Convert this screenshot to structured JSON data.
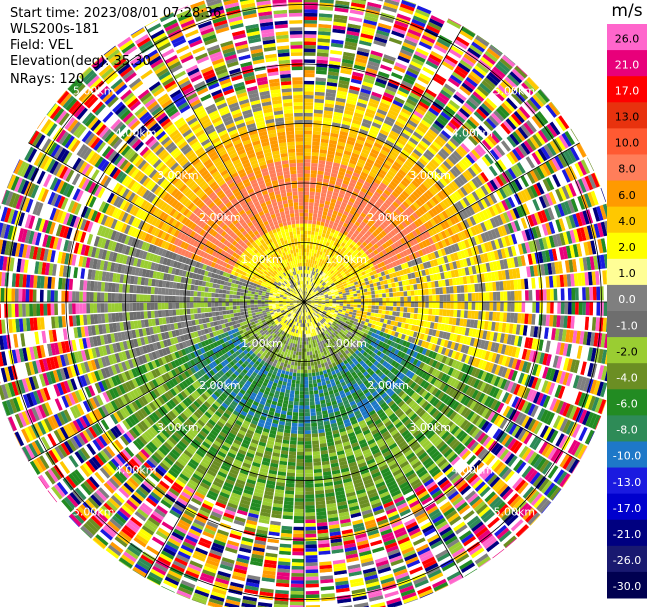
{
  "header": {
    "start_time": "Start time: 2023/08/01 07:28:36",
    "instrument": "WLS200s-181",
    "field": "Field: VEL",
    "elevation": "Elevation(deg): 35.30",
    "nrays": "NRays: 120"
  },
  "chart_data": {
    "type": "heatmap",
    "subtype": "polar PPI",
    "field": "VEL",
    "nrays": 120,
    "range_rings_km": [
      1,
      2,
      3,
      4,
      5
    ],
    "ring_labels": [
      "1.00km",
      "2.00km",
      "3.00km",
      "4.00km",
      "5.00km"
    ],
    "max_range_km": 5.35,
    "colorbar": {
      "unit": "m/s",
      "ticks": [
        "26.0",
        "21.0",
        "17.0",
        "13.0",
        "10.0",
        "8.0",
        "6.0",
        "4.0",
        "2.0",
        "1.0",
        "0.0",
        "-1.0",
        "-2.0",
        "-4.0",
        "-6.0",
        "-8.0",
        "-10.0",
        "-13.0",
        "-17.0",
        "-21.0",
        "-26.0",
        "-30.0"
      ],
      "colors": [
        "#ff66cc",
        "#e8007a",
        "#ff0000",
        "#e8320e",
        "#ff5a32",
        "#ff7e5a",
        "#ff9a00",
        "#ffc800",
        "#ffff00",
        "#fffe96",
        "#7f7f7f",
        "#6e6e6e",
        "#9acd32",
        "#6b8e23",
        "#228b22",
        "#2e8b57",
        "#1e78c8",
        "#1a1ae0",
        "#0000cd",
        "#000080",
        "#191970",
        "#000050"
      ]
    },
    "regions": [
      {
        "range_km": [
          0.0,
          0.55
        ],
        "bearing_deg": [
          0,
          360
        ],
        "velocity": "0.0 to 2.0"
      },
      {
        "range_km": [
          0.55,
          3.6
        ],
        "bearing_deg": [
          290,
          70
        ],
        "velocity": "4.0 to 8.0"
      },
      {
        "range_km": [
          0.55,
          3.6
        ],
        "bearing_deg": [
          70,
          110
        ],
        "velocity": "2.0 to 4.0"
      },
      {
        "range_km": [
          0.55,
          3.6
        ],
        "bearing_deg": [
          110,
          250
        ],
        "velocity": "-2.0 to -8.0"
      },
      {
        "range_km": [
          0.55,
          3.6
        ],
        "bearing_deg": [
          250,
          290
        ],
        "velocity": "-1.0 to 0.0"
      },
      {
        "range_km": [
          3.6,
          5.35
        ],
        "bearing_deg": [
          0,
          360
        ],
        "velocity": "noise"
      }
    ]
  }
}
